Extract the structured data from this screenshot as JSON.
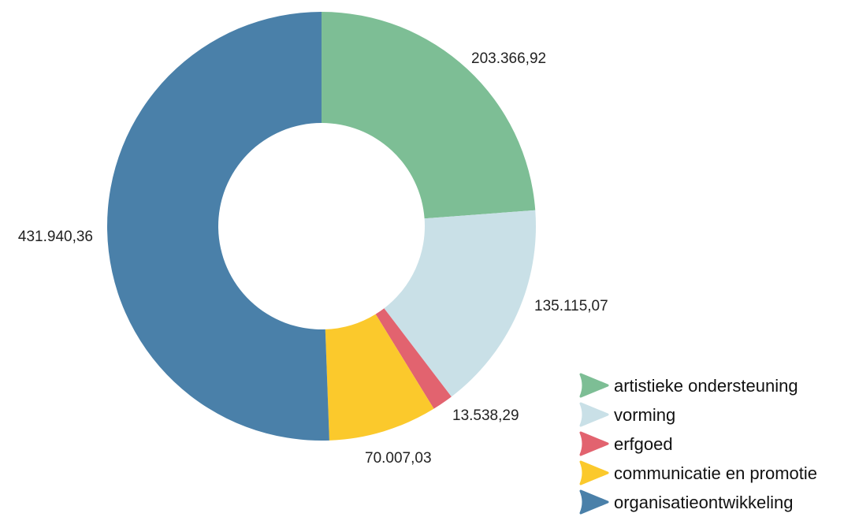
{
  "chart_data": {
    "type": "pie",
    "variant": "donut",
    "slices": [
      {
        "label": "artistieke ondersteuning",
        "value": 203366.92,
        "display": "203.366,92",
        "color": "#7dbe95"
      },
      {
        "label": "vorming",
        "value": 135115.07,
        "display": "135.115,07",
        "color": "#c9e0e7"
      },
      {
        "label": "erfgoed",
        "value": 13538.29,
        "display": "13.538,29",
        "color": "#e2636f"
      },
      {
        "label": "communicatie en promotie",
        "value": 70007.03,
        "display": "70.007,03",
        "color": "#fbc92c"
      },
      {
        "label": "organisatieontwikkeling",
        "value": 431940.36,
        "display": "431.940,36",
        "color": "#4a80a9"
      }
    ],
    "legend_position": "bottom-right",
    "start_angle": "12 o'clock",
    "direction": "clockwise"
  }
}
